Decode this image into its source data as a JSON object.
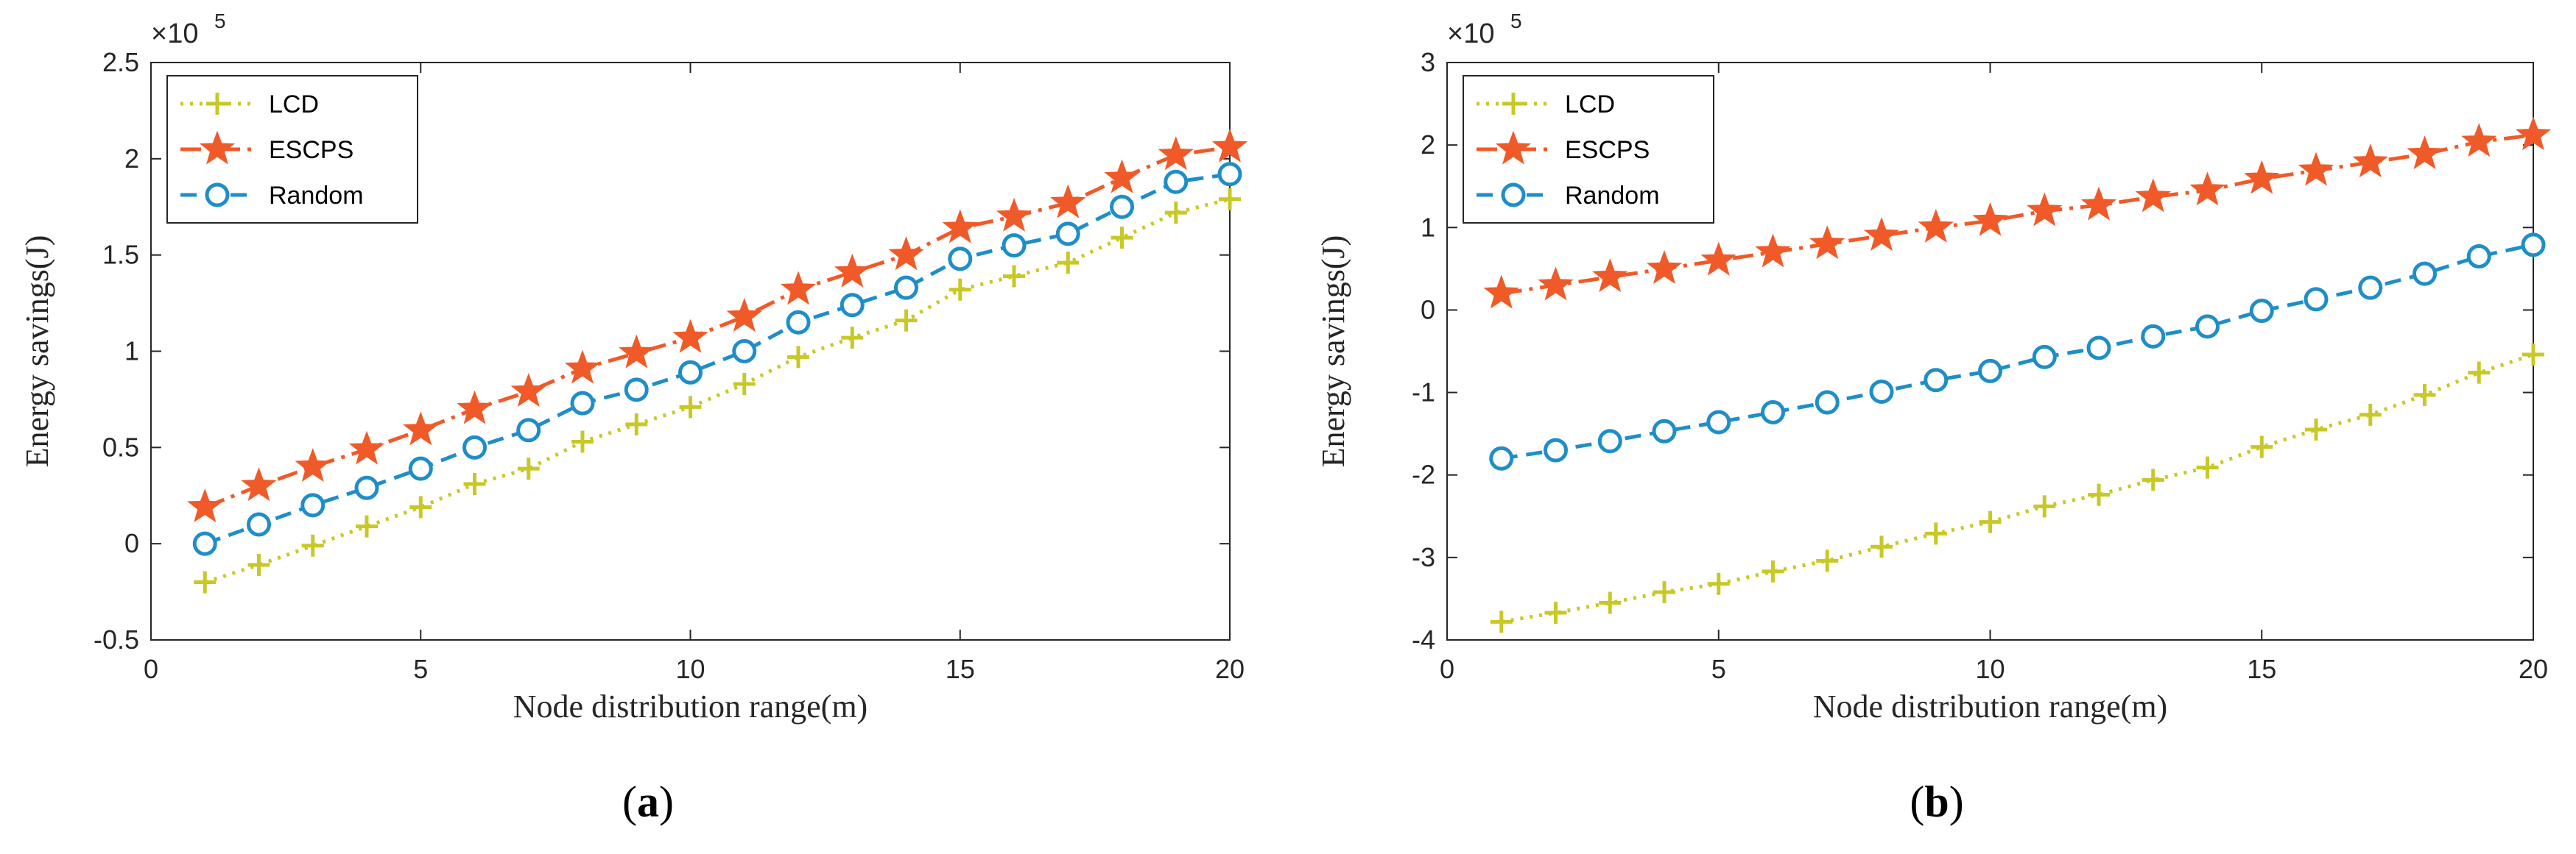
{
  "chart_data": [
    {
      "type": "line",
      "panel_label": "a",
      "xlabel": "Node distribution range(m)",
      "ylabel": "Energy savings(J)",
      "y_multiplier": "×10",
      "y_multiplier_exp": "5",
      "xlim": [
        0,
        20
      ],
      "ylim": [
        -0.5,
        2.5
      ],
      "xticks": [
        0,
        5,
        10,
        15,
        20
      ],
      "yticks": [
        -0.5,
        0,
        0.5,
        1,
        1.5,
        2,
        2.5
      ],
      "ytick_labels": [
        "-0.5",
        "0",
        "0.5",
        "1",
        "1.5",
        "2",
        "2.5"
      ],
      "xtick_labels": [
        "0",
        "5",
        "10",
        "15",
        "20"
      ],
      "grid": false,
      "legend_position": "top-left",
      "x": [
        1,
        2,
        3,
        4,
        5,
        6,
        7,
        8,
        9,
        10,
        11,
        12,
        13,
        14,
        15,
        16,
        17,
        18,
        19,
        20
      ],
      "series": [
        {
          "name": "LCD",
          "color": "#c8c826",
          "marker": "plus",
          "dash": "dotted",
          "values": [
            -0.2,
            -0.11,
            -0.01,
            0.09,
            0.19,
            0.31,
            0.39,
            0.53,
            0.62,
            0.71,
            0.83,
            0.97,
            1.07,
            1.16,
            1.32,
            1.39,
            1.46,
            1.59,
            1.72,
            1.79
          ]
        },
        {
          "name": "ESCPS",
          "color": "#f05a28",
          "marker": "star",
          "dash": "dashdot",
          "values": [
            0.19,
            0.3,
            0.4,
            0.49,
            0.59,
            0.7,
            0.79,
            0.91,
            0.99,
            1.07,
            1.18,
            1.32,
            1.41,
            1.5,
            1.64,
            1.7,
            1.77,
            1.9,
            2.02,
            2.06
          ]
        },
        {
          "name": "Random",
          "color": "#1f8ec8",
          "marker": "circle",
          "dash": "dashed",
          "values": [
            0.0,
            0.1,
            0.2,
            0.29,
            0.39,
            0.5,
            0.59,
            0.73,
            0.8,
            0.89,
            1.0,
            1.15,
            1.24,
            1.33,
            1.48,
            1.55,
            1.61,
            1.75,
            1.88,
            1.92
          ]
        }
      ]
    },
    {
      "type": "line",
      "panel_label": "b",
      "xlabel": "Node distribution range(m)",
      "ylabel": "Energy savings(J)",
      "y_multiplier": "×10",
      "y_multiplier_exp": "5",
      "xlim": [
        0,
        20
      ],
      "ylim": [
        -4,
        3
      ],
      "xticks": [
        0,
        5,
        10,
        15,
        20
      ],
      "yticks": [
        -4,
        -3,
        -2,
        -1,
        0,
        1,
        2,
        3
      ],
      "ytick_labels": [
        "-4",
        "-3",
        "-2",
        "-1",
        "0",
        "1",
        "2",
        "3"
      ],
      "xtick_labels": [
        "0",
        "5",
        "10",
        "15",
        "20"
      ],
      "grid": false,
      "legend_position": "top-left",
      "x": [
        1,
        2,
        3,
        4,
        5,
        6,
        7,
        8,
        9,
        10,
        11,
        12,
        13,
        14,
        15,
        16,
        17,
        18,
        19,
        20
      ],
      "series": [
        {
          "name": "LCD",
          "color": "#c8c826",
          "marker": "plus",
          "dash": "dotted",
          "values": [
            -3.78,
            -3.67,
            -3.55,
            -3.42,
            -3.32,
            -3.17,
            -3.04,
            -2.87,
            -2.71,
            -2.57,
            -2.38,
            -2.24,
            -2.06,
            -1.91,
            -1.66,
            -1.45,
            -1.27,
            -1.03,
            -0.76,
            -0.54
          ]
        },
        {
          "name": "ESCPS",
          "color": "#f05a28",
          "marker": "star",
          "dash": "dashdot",
          "values": [
            0.2,
            0.3,
            0.4,
            0.5,
            0.6,
            0.7,
            0.8,
            0.9,
            1.0,
            1.08,
            1.2,
            1.27,
            1.37,
            1.45,
            1.59,
            1.69,
            1.79,
            1.89,
            2.04,
            2.12
          ]
        },
        {
          "name": "Random",
          "color": "#1f8ec8",
          "marker": "circle",
          "dash": "dashed",
          "values": [
            -1.8,
            -1.7,
            -1.59,
            -1.47,
            -1.36,
            -1.24,
            -1.12,
            -0.99,
            -0.85,
            -0.74,
            -0.57,
            -0.46,
            -0.32,
            -0.2,
            -0.01,
            0.13,
            0.27,
            0.44,
            0.65,
            0.79
          ]
        }
      ]
    }
  ]
}
